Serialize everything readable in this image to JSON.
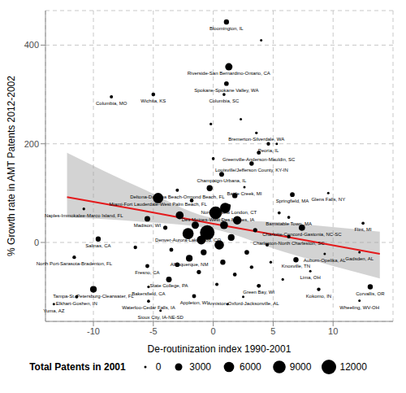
{
  "chart_data": {
    "type": "scatter",
    "x_label": "De-routinization index 1990-2001",
    "y_label": "% Growth rate in AMT Patents 2012-2002",
    "xlim": [
      -14,
      15
    ],
    "xticks": [
      -10,
      -5,
      0,
      5,
      10
    ],
    "ylim": [
      -160,
      470
    ],
    "yticks": [
      0,
      200,
      400
    ],
    "grid": true,
    "color": "#000000",
    "marker": "circle",
    "points": [
      {
        "x": 1.1,
        "y": 447,
        "size": 1500,
        "label": "Bloomington, IL"
      },
      {
        "x": 1.3,
        "y": 356,
        "size": 3000,
        "label": "Riverside-San Bernardino-Ontario, CA"
      },
      {
        "x": 1.1,
        "y": 322,
        "size": 1200,
        "label": "Spokane-Spokane Valley, WA"
      },
      {
        "x": 0.9,
        "y": 300,
        "size": 500,
        "label": "Columbia, SC"
      },
      {
        "x": -8.5,
        "y": 295,
        "size": 600,
        "label": "Columbia, MO"
      },
      {
        "x": -5.0,
        "y": 300,
        "size": 800,
        "label": "Wichita, KS"
      },
      {
        "x": 3.6,
        "y": 222,
        "size": 400,
        "label": "Bremerton-Silverdale, WA"
      },
      {
        "x": 4.6,
        "y": 200,
        "size": 700,
        "label": "Peoria, IL"
      },
      {
        "x": 3.8,
        "y": 182,
        "size": 900,
        "label": "Greenville-Anderson-Mauldin, SC"
      },
      {
        "x": 3.2,
        "y": 160,
        "size": 1100,
        "label": "Louisville/Jefferson County, KY-IN"
      },
      {
        "x": 0.7,
        "y": 138,
        "size": 1300,
        "label": "Champaign-Urbana, IL"
      },
      {
        "x": 2.6,
        "y": 112,
        "size": 300,
        "label": "Battle Creek, MI"
      },
      {
        "x": -3.0,
        "y": 106,
        "size": 600,
        "label": "Deltona-Daytona Beach-Ormond Beach, FL"
      },
      {
        "x": -4.6,
        "y": 90,
        "size": 6000,
        "label": "Miami-Fort Lauderdale-West Palm Beach, FL"
      },
      {
        "x": 6.6,
        "y": 97,
        "size": 1200,
        "label": "Springfield, MA"
      },
      {
        "x": 9.6,
        "y": 100,
        "size": 300,
        "label": "Glens Falls, NY"
      },
      {
        "x": -10.8,
        "y": 68,
        "size": 400,
        "label": "Naples-Immokalee-Marco Island, FL"
      },
      {
        "x": 1.3,
        "y": 74,
        "size": 900,
        "label": "Norwich-New London, CT"
      },
      {
        "x": 0.4,
        "y": 59,
        "size": 1500,
        "label": "Des Moines-West Des Moines, IA"
      },
      {
        "x": -5.5,
        "y": 48,
        "size": 1800,
        "label": "Madison, WI"
      },
      {
        "x": 6.3,
        "y": 51,
        "size": 500,
        "label": "Barnstable Town, MA"
      },
      {
        "x": 7.4,
        "y": 30,
        "size": 2200,
        "label": "Charlotte-Concord-Gastonia, NC-SC"
      },
      {
        "x": 12.5,
        "y": 39,
        "size": 500,
        "label": "Flint, MI"
      },
      {
        "x": -9.6,
        "y": 7,
        "size": 1500,
        "label": "Salinas, CA"
      },
      {
        "x": -2.1,
        "y": 18,
        "size": 7000,
        "label": "Denver-Aurora-Lakewood, CO"
      },
      {
        "x": 6.3,
        "y": 12,
        "size": 700,
        "label": "Charleston-North Charleston, SC"
      },
      {
        "x": 12.2,
        "y": -20,
        "size": 200,
        "label": "Gadsden, AL"
      },
      {
        "x": 9.3,
        "y": -23,
        "size": 300,
        "label": "Auburn-Opelika, AL"
      },
      {
        "x": 6.9,
        "y": -35,
        "size": 1500,
        "label": "Knoxville, TN"
      },
      {
        "x": -2.0,
        "y": -32,
        "size": 2500,
        "label": "Albuquerque, NM"
      },
      {
        "x": -11.6,
        "y": -30,
        "size": 700,
        "label": "North Port-Sarasota-Bradenton, FL"
      },
      {
        "x": -5.5,
        "y": -48,
        "size": 900,
        "label": "Fresno, CA"
      },
      {
        "x": -3.7,
        "y": -75,
        "size": 1800,
        "label": "State College, PA"
      },
      {
        "x": -5.4,
        "y": -90,
        "size": 400,
        "label": "Bakersfield, CA"
      },
      {
        "x": -10.0,
        "y": -95,
        "size": 2500,
        "label": "Tampa-St. Petersburg-Clearwater, FL"
      },
      {
        "x": -11.4,
        "y": -110,
        "size": 600,
        "label": "Elkhart-Goshen, IN"
      },
      {
        "x": -13.3,
        "y": -125,
        "size": 300,
        "label": "Yuma, AZ"
      },
      {
        "x": -1.6,
        "y": -109,
        "size": 900,
        "label": "Appleton, WI"
      },
      {
        "x": -5.4,
        "y": -119,
        "size": 500,
        "label": "Waterloo-Cedar Falls, IA"
      },
      {
        "x": -4.4,
        "y": -138,
        "size": 300,
        "label": "Sioux City, IA-NE-SD"
      },
      {
        "x": 2.5,
        "y": -110,
        "size": 200,
        "label": "Anniston-Oxford-Jacksonville, AL"
      },
      {
        "x": 3.8,
        "y": -88,
        "size": 900,
        "label": "Green Bay, WI"
      },
      {
        "x": 8.1,
        "y": -58,
        "size": 300,
        "label": "Lima, OH"
      },
      {
        "x": 8.8,
        "y": -95,
        "size": 700,
        "label": "Kokomo, IN"
      },
      {
        "x": 13.1,
        "y": -90,
        "size": 1500,
        "label": "Corvallis, OR"
      },
      {
        "x": 12.2,
        "y": -118,
        "size": 200,
        "label": "Wheeling, WV-OH"
      },
      {
        "x": 0.2,
        "y": 60,
        "size": 9000
      },
      {
        "x": -0.5,
        "y": 20,
        "size": 12000
      },
      {
        "x": 1.0,
        "y": 70,
        "size": 6000
      },
      {
        "x": -1.5,
        "y": 35,
        "size": 3000
      },
      {
        "x": 0.5,
        "y": -5,
        "size": 5000
      },
      {
        "x": 2.0,
        "y": 45,
        "size": 4000
      },
      {
        "x": -2.8,
        "y": 55,
        "size": 3500
      },
      {
        "x": 1.5,
        "y": 10,
        "size": 2500
      },
      {
        "x": -0.8,
        "y": -20,
        "size": 2000
      },
      {
        "x": 0.8,
        "y": -40,
        "size": 1500
      },
      {
        "x": -1.2,
        "y": -60,
        "size": 1000
      },
      {
        "x": 1.8,
        "y": -65,
        "size": 800
      },
      {
        "x": 2.8,
        "y": -20,
        "size": 1200
      },
      {
        "x": -3.5,
        "y": -15,
        "size": 900
      },
      {
        "x": 3.5,
        "y": 25,
        "size": 1000
      },
      {
        "x": 4.5,
        "y": -5,
        "size": 600
      },
      {
        "x": -0.3,
        "y": 110,
        "size": 2000
      },
      {
        "x": 1.8,
        "y": 95,
        "size": 1500
      },
      {
        "x": -1.8,
        "y": 85,
        "size": 800
      },
      {
        "x": 0.0,
        "y": 170,
        "size": 500
      },
      {
        "x": 2.3,
        "y": 250,
        "size": 300
      },
      {
        "x": -0.2,
        "y": 240,
        "size": 400
      },
      {
        "x": 5.3,
        "y": 200,
        "size": 300
      },
      {
        "x": 4.0,
        "y": 410,
        "size": 300
      },
      {
        "x": 5.5,
        "y": 60,
        "size": 500
      },
      {
        "x": 4.8,
        "y": -40,
        "size": 400
      },
      {
        "x": -4.0,
        "y": 30,
        "size": 1000
      },
      {
        "x": -6.5,
        "y": -10,
        "size": 700
      },
      {
        "x": -3.0,
        "y": -45,
        "size": 1200
      },
      {
        "x": 0.3,
        "y": -85,
        "size": 600
      },
      {
        "x": 1.2,
        "y": -125,
        "size": 300
      },
      {
        "x": 5.8,
        "y": -75,
        "size": 400
      },
      {
        "x": 3.2,
        "y": -50,
        "size": 700
      },
      {
        "x": -1.0,
        "y": 5,
        "size": 4500
      },
      {
        "x": 0.9,
        "y": 35,
        "size": 3500
      }
    ],
    "size_legend": {
      "title": "Total Patents in 2001",
      "values": [
        0,
        3000,
        6000,
        9000,
        12000
      ]
    },
    "fit": {
      "color": "#e41a1c",
      "x": [
        -12.2,
        -6,
        0,
        6,
        13.9
      ],
      "y": [
        92,
        65,
        38,
        12,
        -23
      ],
      "lower": [
        51,
        42,
        27,
        -20,
        -73
      ],
      "upper": [
        182,
        110,
        50,
        40,
        22
      ]
    }
  }
}
